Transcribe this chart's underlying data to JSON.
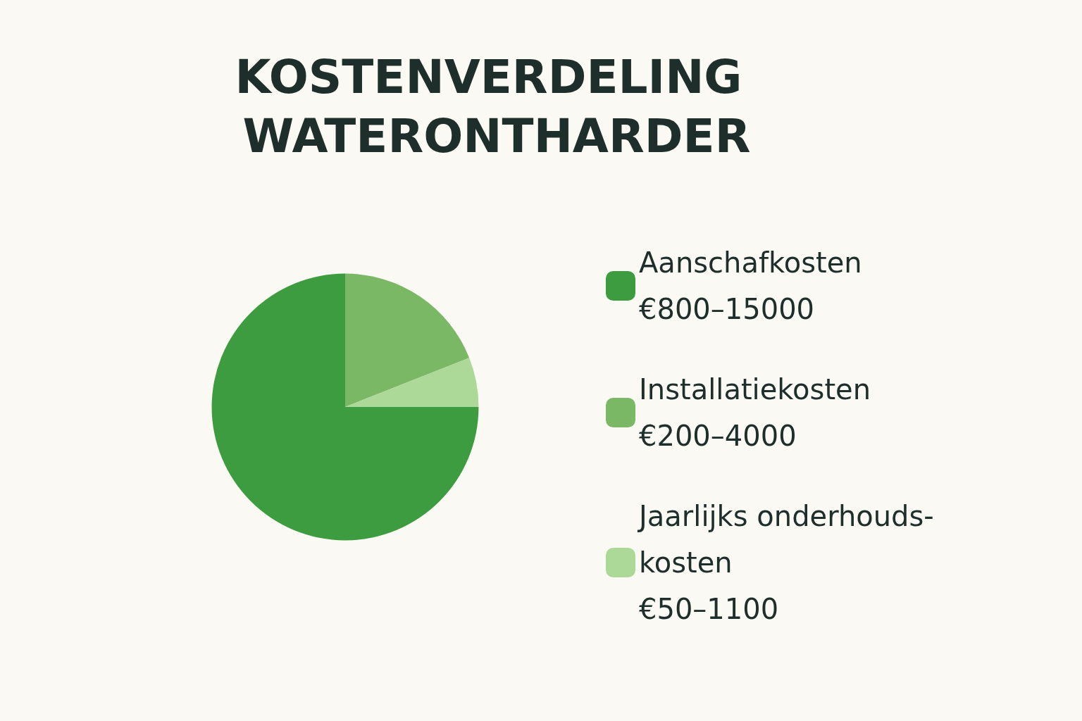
{
  "chart_data": {
    "type": "pie",
    "title": "KOSTENVERDELING WATERONTHARDER",
    "categories": [
      "Aanschafkosten\n€800–15000",
      "Installatiekosten\n€200–4000",
      "Jaarlijks onderhouds-\nkosten\n€50–1100"
    ],
    "values": [
      75,
      19,
      6
    ],
    "colors": [
      "#3d9c40",
      "#7ab866",
      "#acd898"
    ],
    "legend": "right"
  }
}
